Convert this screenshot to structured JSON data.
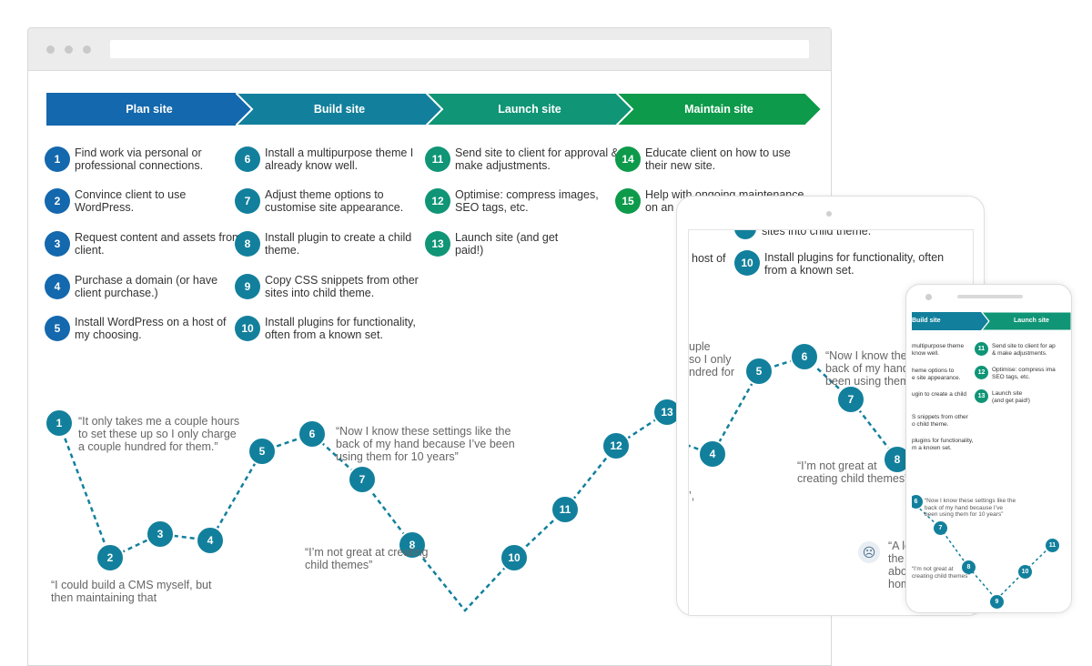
{
  "phases": [
    {
      "label": "Plan site",
      "color": "#1468ad"
    },
    {
      "label": "Build site",
      "color": "#12809c"
    },
    {
      "label": "Launch site",
      "color": "#109576"
    },
    {
      "label": "Maintain site",
      "color": "#0d9a4a"
    }
  ],
  "steps": {
    "plan": [
      {
        "num": "1",
        "text": "Find work via personal or professional connections."
      },
      {
        "num": "2",
        "text": "Convince client to use WordPress."
      },
      {
        "num": "3",
        "text": "Request content and assets from client."
      },
      {
        "num": "4",
        "text": "Purchase a domain (or have client purchase.)"
      },
      {
        "num": "5",
        "text": "Install WordPress on a host of my choosing."
      }
    ],
    "build": [
      {
        "num": "6",
        "text": "Install a multipurpose theme I already know well."
      },
      {
        "num": "7",
        "text": "Adjust theme options to customise site appearance."
      },
      {
        "num": "8",
        "text": "Install plugin to create a child theme."
      },
      {
        "num": "9",
        "text": "Copy CSS snippets from other sites into child theme."
      },
      {
        "num": "10",
        "text": "Install plugins for functionality, often from a known set."
      }
    ],
    "launch": [
      {
        "num": "11",
        "text": "Send site to client for approval & make adjustments."
      },
      {
        "num": "12",
        "text": "Optimise: compress images, SEO tags, etc."
      },
      {
        "num": "13",
        "text": "Launch site (and get paid!)"
      }
    ],
    "maintain": [
      {
        "num": "14",
        "text": "Educate client on how to use their new site."
      },
      {
        "num": "15",
        "text": "Help with ongoing maintenance on an a"
      }
    ]
  },
  "journey": {
    "quotes": {
      "q1": "“It only takes me a couple hours to set these up so I only charge a couple hundred for them.”",
      "q2": "“I could build a CMS myself, but then maintaining that",
      "q3": "“Now I know these settings like the back of my hand because I’ve been using them for 10 years”",
      "q4": "“I’m not great at creating child themes”"
    }
  },
  "tablet": {
    "step10": "Install plugins for functionality, often from a known set.",
    "step9_tail": "sites into child theme.",
    "step5_tail": "host of",
    "quote_left": "uple\nso I only\nndred for",
    "quote_now": "“Now I know these\nback of my hand\nbeen using them",
    "quote_child": "“I’m not great at\ncreating child themes”",
    "quote_al": "“A lo\nthe\nabo\nhom",
    "comma": "’,",
    "sad_icon": "sad-face-icon"
  },
  "phone": {
    "phase_build": "Build site",
    "phase_launch": "Launch site",
    "build_items": [
      "multipurpose theme\nknow well.",
      "heme options to\ne site appearance.",
      "ugin to create a child",
      "S snippets from other\no child theme.",
      "plugins for functionality,\nm a known set."
    ],
    "launch_items": [
      {
        "num": "11",
        "text": "Send site to client for ap\n& make adjustments."
      },
      {
        "num": "12",
        "text": "Optimise: compress ima\nSEO tags, etc."
      },
      {
        "num": "13",
        "text": "Launch site\n(and get paid!)"
      }
    ],
    "quote_now": "“Now I know these settings like the\nback of my hand because I’ve\nbeen using them for 10 years”",
    "quote_child": "“I’m not great at\ncreating child themes”"
  }
}
